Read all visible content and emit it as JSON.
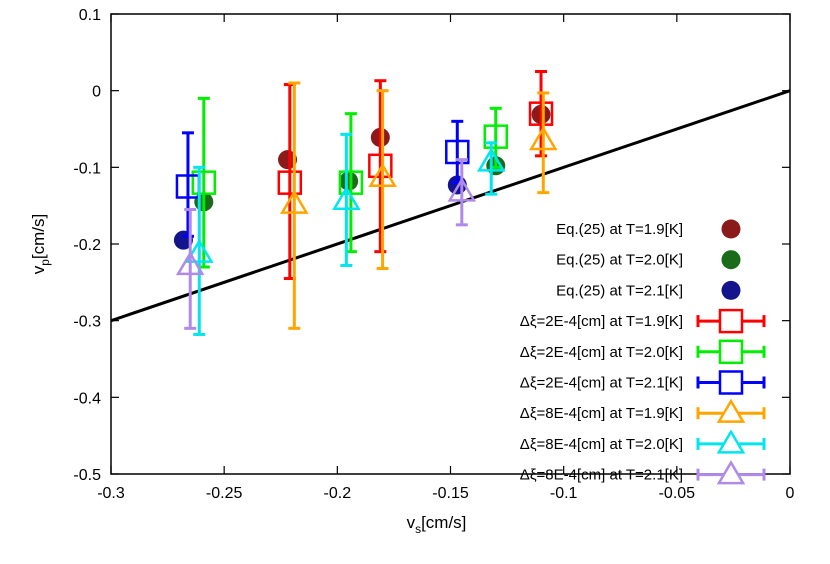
{
  "chart_data": {
    "type": "scatter",
    "title": "",
    "xlabel_main": "v",
    "xlabel_sub": "s",
    "xlabel_unit": "[cm/s]",
    "ylabel_main": "v",
    "ylabel_sub": "p",
    "ylabel_unit": "[cm/s]",
    "xlim": [
      -0.3,
      0
    ],
    "ylim": [
      -0.5,
      0.1
    ],
    "xticks": [
      "-0.3",
      "-0.25",
      "-0.2",
      "-0.15",
      "-0.1",
      "-0.05",
      "0"
    ],
    "yticks": [
      "0.1",
      "0",
      "-0.1",
      "-0.2",
      "-0.3",
      "-0.4",
      "-0.5"
    ],
    "grid": false,
    "legend_position": "bottom-right",
    "reference_line": {
      "x": [
        -0.3,
        0
      ],
      "y": [
        -0.3,
        0
      ],
      "color": "#000000"
    },
    "series": [
      {
        "name": "Eq.(25) at T=1.9[K]",
        "marker": "circle",
        "color": "#8b1a1a",
        "points": [
          [
            -0.222,
            -0.09
          ],
          [
            -0.181,
            -0.061
          ],
          [
            -0.11,
            -0.031
          ]
        ]
      },
      {
        "name": "Eq.(25) at T=2.0[K]",
        "marker": "circle",
        "color": "#1a6b1a",
        "points": [
          [
            -0.259,
            -0.145
          ],
          [
            -0.195,
            -0.118
          ],
          [
            -0.13,
            -0.098
          ]
        ]
      },
      {
        "name": "Eq.(25) at T=2.1[K]",
        "marker": "circle",
        "color": "#14148c",
        "points": [
          [
            -0.268,
            -0.195
          ],
          [
            -0.147,
            -0.123
          ]
        ]
      },
      {
        "name": "Δξ=2E-4[cm] at T=1.9[K]",
        "marker": "square",
        "color": "#ff0000",
        "points": [
          [
            -0.221,
            -0.12,
            -0.245,
            0.008
          ],
          [
            -0.181,
            -0.098,
            -0.21,
            0.013
          ],
          [
            -0.11,
            -0.03,
            -0.085,
            0.025
          ]
        ]
      },
      {
        "name": "Δξ=2E-4[cm] at T=2.0[K]",
        "marker": "square",
        "color": "#00ee00",
        "points": [
          [
            -0.259,
            -0.12,
            -0.23,
            -0.01
          ],
          [
            -0.194,
            -0.12,
            -0.21,
            -0.03
          ],
          [
            -0.13,
            -0.06,
            -0.1,
            -0.023
          ]
        ]
      },
      {
        "name": "Δξ=2E-4[cm] at T=2.1[K]",
        "marker": "square",
        "color": "#0000ff",
        "points": [
          [
            -0.266,
            -0.125,
            -0.19,
            -0.055
          ],
          [
            -0.147,
            -0.08,
            -0.12,
            -0.04
          ]
        ]
      },
      {
        "name": "Δξ=8E-4[cm] at T=1.9[K]",
        "marker": "triangle",
        "color": "#ffa500",
        "points": [
          [
            -0.219,
            -0.148,
            -0.31,
            0.01
          ],
          [
            -0.18,
            -0.113,
            -0.232,
            0.0
          ],
          [
            -0.109,
            -0.065,
            -0.133,
            -0.003
          ]
        ]
      },
      {
        "name": "Δξ=8E-4[cm] at T=2.0[K]",
        "marker": "triangle",
        "color": "#00e5ee",
        "points": [
          [
            -0.261,
            -0.212,
            -0.318,
            -0.1
          ],
          [
            -0.196,
            -0.143,
            -0.228,
            -0.057
          ],
          [
            -0.132,
            -0.093,
            -0.135,
            -0.068
          ]
        ]
      },
      {
        "name": "Δξ=8E-4[cm] at T=2.1[K]",
        "marker": "triangle",
        "color": "#b08ae8",
        "points": [
          [
            -0.265,
            -0.228,
            -0.31,
            -0.155
          ],
          [
            -0.145,
            -0.132,
            -0.175,
            -0.09
          ]
        ]
      }
    ]
  }
}
